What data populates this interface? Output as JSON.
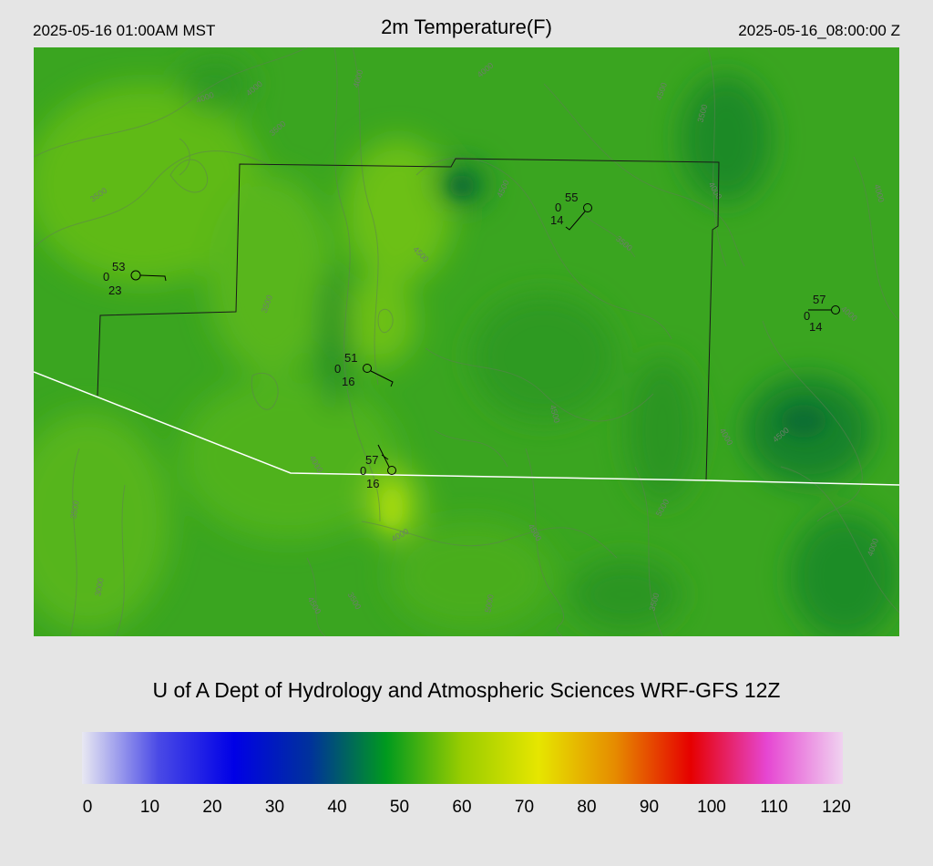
{
  "header": {
    "local_time": "2025-05-16 01:00AM MST",
    "title": "2m Temperature(F)",
    "valid_time": "2025-05-16_08:00:00 Z"
  },
  "credit": "U of A Dept of Hydrology and Atmospheric Sciences WRF-GFS 12Z",
  "colorbar": {
    "min": 0,
    "max": 120,
    "ticks": [
      "0",
      "10",
      "20",
      "30",
      "40",
      "50",
      "60",
      "70",
      "80",
      "90",
      "100",
      "110",
      "120"
    ],
    "colors": [
      "#e8e8f2",
      "#4a4ae6",
      "#0000e6",
      "#00329b",
      "#009a1e",
      "#9acd00",
      "#e6e600",
      "#e68c00",
      "#e60000",
      "#e646d2",
      "#f0d2f0"
    ]
  },
  "stations": [
    {
      "temp": "53",
      "dew": "23",
      "cloud": "0"
    },
    {
      "temp": "55",
      "dew": "14",
      "cloud": "0"
    },
    {
      "temp": "57",
      "dew": "14",
      "cloud": "0"
    },
    {
      "temp": "51",
      "dew": "16",
      "cloud": "0"
    },
    {
      "temp": "57",
      "dew": "16",
      "cloud": "0"
    }
  ],
  "contour_labels": [
    "4000",
    "4000",
    "3500",
    "4000",
    "3500",
    "4000",
    "4500",
    "3500",
    "4500",
    "3500",
    "4500",
    "3500",
    "4000",
    "4000",
    "4000",
    "4500",
    "4000",
    "4500",
    "5000",
    "4500",
    "5000",
    "3500",
    "4000",
    "4000",
    "3500",
    "4500",
    "3000",
    "3500",
    "4000"
  ]
}
